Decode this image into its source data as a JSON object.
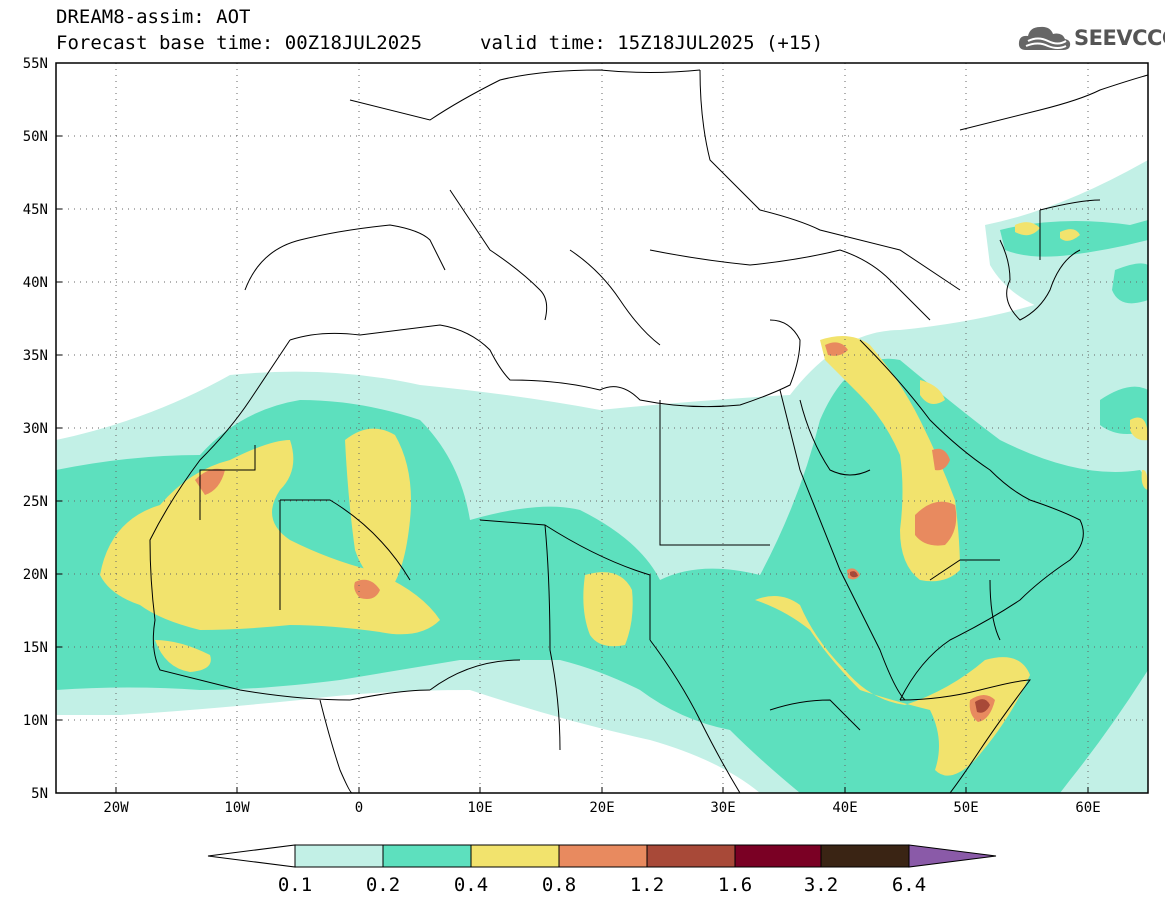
{
  "header": {
    "title": "DREAM8-assim: AOT",
    "base_time": "Forecast base time: 00Z18JUL2025",
    "valid_time": "valid time: 15Z18JUL2025 (+15)"
  },
  "logo": {
    "text": "SEEVCCC",
    "icon": "cloud-icon"
  },
  "map": {
    "lat_labels": [
      "55N",
      "50N",
      "45N",
      "40N",
      "35N",
      "30N",
      "25N",
      "20N",
      "15N",
      "10N",
      "5N"
    ],
    "lon_labels": [
      "20W",
      "10W",
      "0",
      "10E",
      "20E",
      "30E",
      "40E",
      "50E",
      "60E"
    ],
    "lon_range": [
      -25,
      65
    ],
    "lat_range": [
      5,
      55
    ],
    "grid": "dotted"
  },
  "colorbar": {
    "labels": [
      "0.1",
      "0.2",
      "0.4",
      "0.8",
      "1.2",
      "1.6",
      "3.2",
      "6.4"
    ],
    "colors": [
      "#ffffff",
      "#c2f0e6",
      "#5de0be",
      "#f2e36d",
      "#e88a5f",
      "#a84938",
      "#7a0024",
      "#3a2414",
      "#8a5aa8"
    ]
  }
}
